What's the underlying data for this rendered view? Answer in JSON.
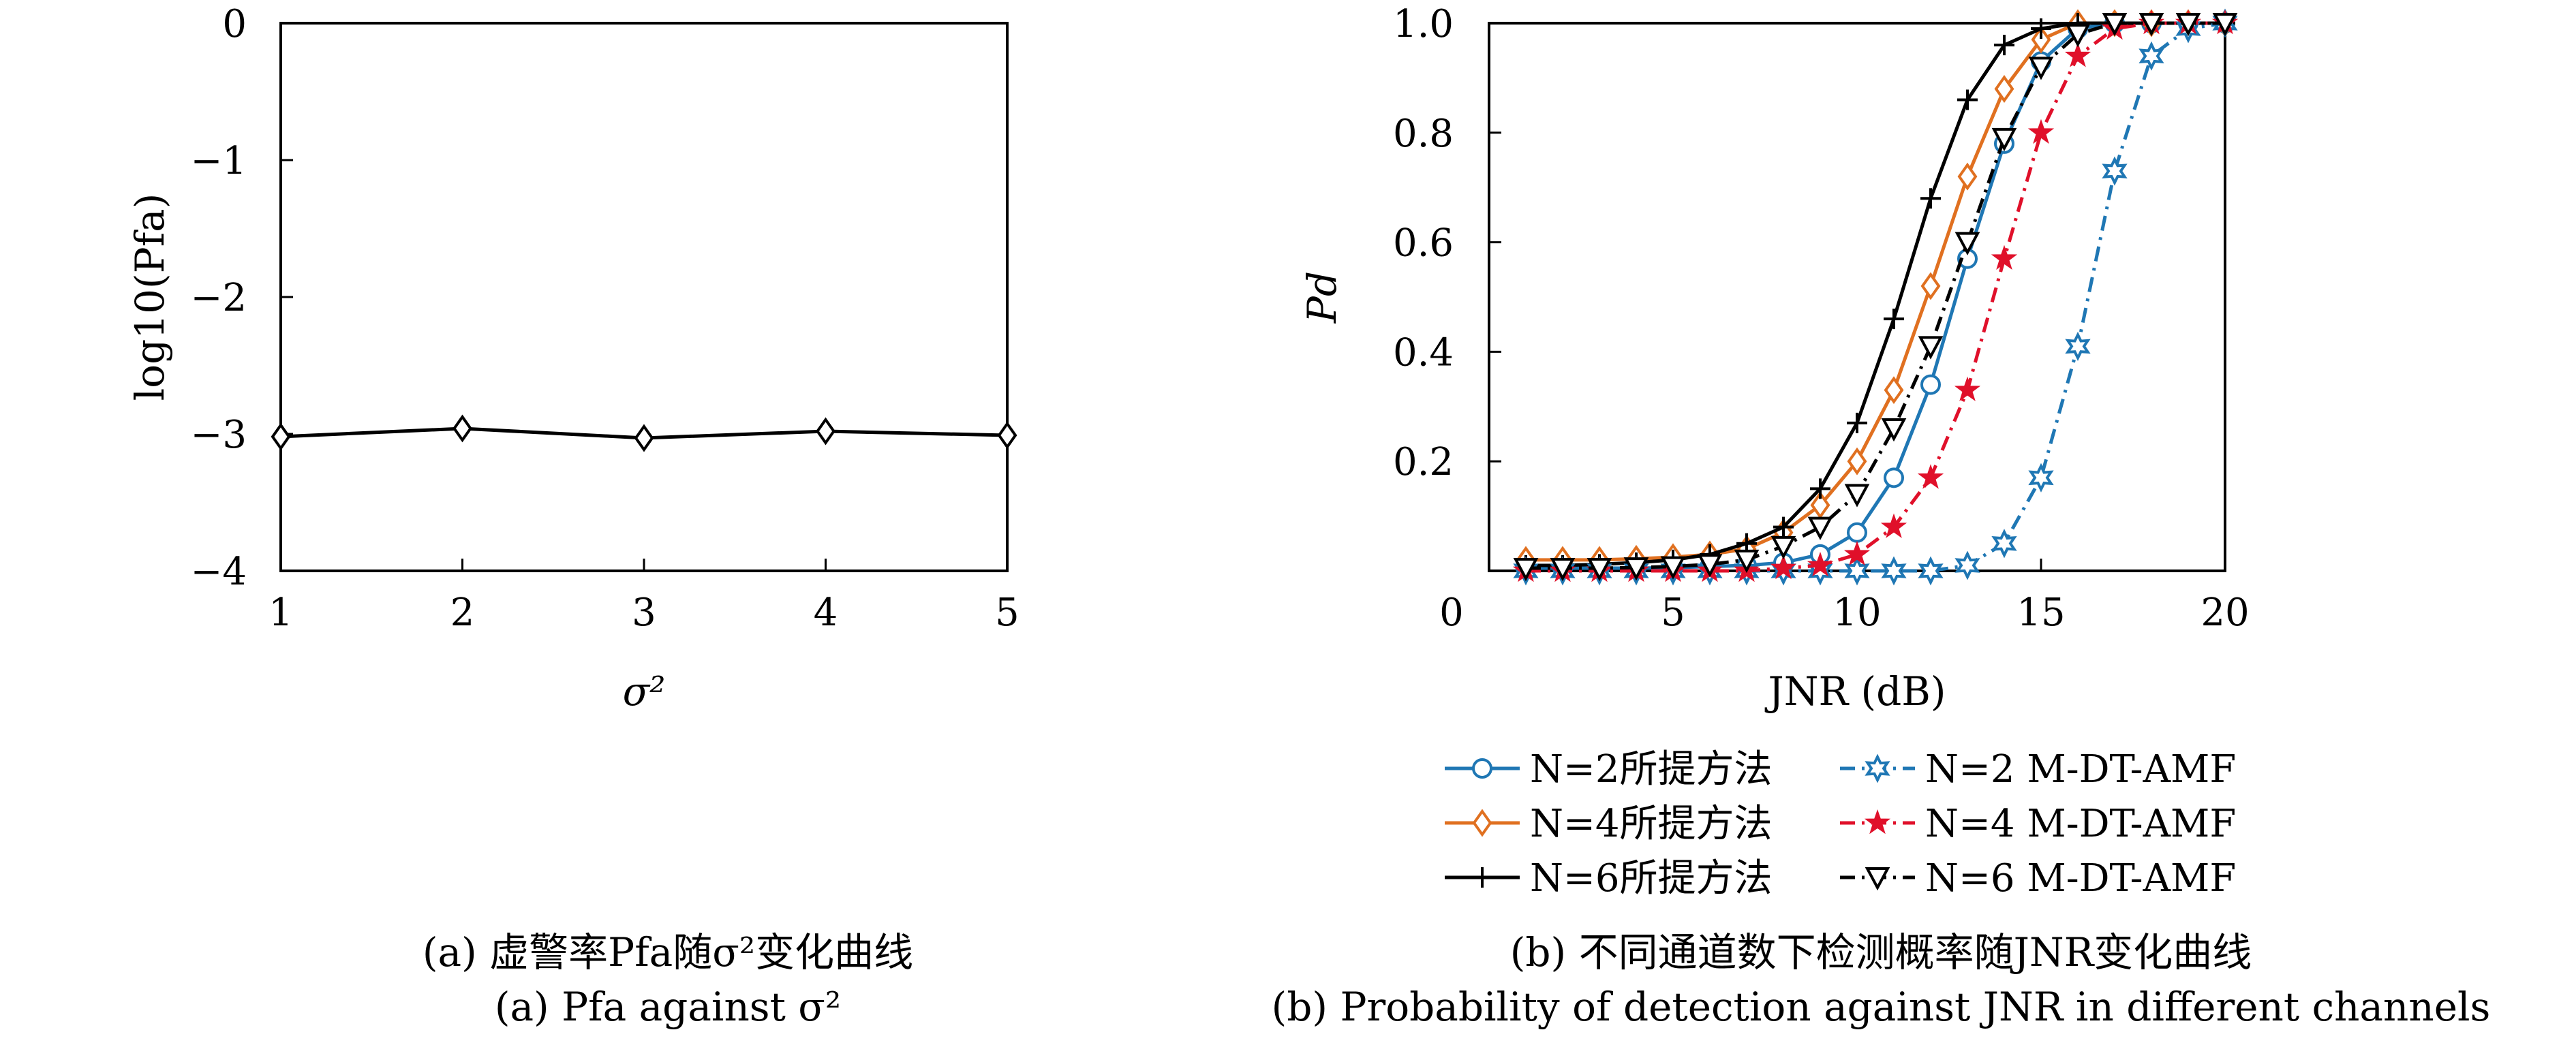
{
  "chart_data": [
    {
      "type": "line",
      "xlabel": "σ²",
      "ylabel": "log10(Pfa)",
      "xlim": [
        1,
        5
      ],
      "ylim": [
        -4,
        0
      ],
      "xticks": [
        "1",
        "2",
        "3",
        "4",
        "5"
      ],
      "yticks": [
        "0",
        "−1",
        "−2",
        "−3",
        "−4"
      ],
      "grid": false,
      "x": [
        1,
        2,
        3,
        4,
        5
      ],
      "series": [
        {
          "values": [
            -3.02,
            -2.96,
            -3.03,
            -2.98,
            -3.01
          ],
          "color": "#000000",
          "marker": "diamond"
        }
      ],
      "caption_cn": "(a) 虚警率Pfa随σ²变化曲线",
      "caption_en": "(a) Pfa against σ²"
    },
    {
      "type": "line",
      "xlabel": "JNR (dB)",
      "ylabel": "Pd",
      "xlim": [
        0,
        20
      ],
      "ylim": [
        0,
        1
      ],
      "xticks": [
        "0",
        "5",
        "10",
        "15",
        "20"
      ],
      "yticks": [
        "1.0",
        "0.8",
        "0.6",
        "0.4",
        "0.2"
      ],
      "grid": false,
      "legend_position": "bottom",
      "x": [
        1,
        2,
        3,
        4,
        5,
        6,
        7,
        8,
        9,
        10,
        11,
        12,
        13,
        14,
        15,
        16,
        17,
        18,
        19,
        20
      ],
      "series": [
        {
          "name": "N=2所提方法",
          "color": "#1f77b4",
          "dash": "solid",
          "marker": "circle",
          "values": [
            0.005,
            0.005,
            0.005,
            0.005,
            0.006,
            0.008,
            0.01,
            0.015,
            0.03,
            0.07,
            0.17,
            0.34,
            0.57,
            0.78,
            0.93,
            0.99,
            1.0,
            1.0,
            1.0,
            1.0
          ]
        },
        {
          "name": "N=4所提方法",
          "color": "#e07020",
          "dash": "solid",
          "marker": "diamond",
          "values": [
            0.02,
            0.02,
            0.02,
            0.022,
            0.025,
            0.03,
            0.04,
            0.07,
            0.12,
            0.2,
            0.33,
            0.52,
            0.72,
            0.88,
            0.97,
            1.0,
            1.0,
            1.0,
            1.0,
            1.0
          ]
        },
        {
          "name": "N=6所提方法",
          "color": "#000000",
          "dash": "solid",
          "marker": "plus",
          "values": [
            0.01,
            0.01,
            0.012,
            0.015,
            0.02,
            0.03,
            0.05,
            0.08,
            0.15,
            0.27,
            0.46,
            0.68,
            0.86,
            0.96,
            0.99,
            1.0,
            1.0,
            1.0,
            1.0,
            1.0
          ]
        },
        {
          "name": "N=2 M-DT-AMF",
          "color": "#1f77b4",
          "dash": "dashdot",
          "marker": "star6",
          "values": [
            0.0,
            0.0,
            0.0,
            0.0,
            0.0,
            0.0,
            0.0,
            0.0,
            0.0,
            0.0,
            0.0,
            0.0,
            0.01,
            0.05,
            0.17,
            0.41,
            0.73,
            0.94,
            0.99,
            1.0
          ]
        },
        {
          "name": "N=4 M-DT-AMF",
          "color": "#e0102a",
          "dash": "dashdot",
          "marker": "star5",
          "values": [
            0.0,
            0.0,
            0.0,
            0.0,
            0.0,
            0.0,
            0.0,
            0.005,
            0.01,
            0.03,
            0.08,
            0.17,
            0.33,
            0.57,
            0.8,
            0.94,
            0.99,
            1.0,
            1.0,
            1.0
          ]
        },
        {
          "name": "N=6 M-DT-AMF",
          "color": "#000000",
          "dash": "dashdot",
          "marker": "triangle-down",
          "values": [
            0.005,
            0.005,
            0.005,
            0.006,
            0.008,
            0.012,
            0.02,
            0.045,
            0.08,
            0.14,
            0.26,
            0.41,
            0.6,
            0.79,
            0.92,
            0.98,
            1.0,
            1.0,
            1.0,
            1.0
          ]
        }
      ],
      "caption_cn": "(b) 不同通道数下检测概率随JNR变化曲线",
      "caption_en": "(b) Probability of detection against JNR in different channels"
    }
  ]
}
